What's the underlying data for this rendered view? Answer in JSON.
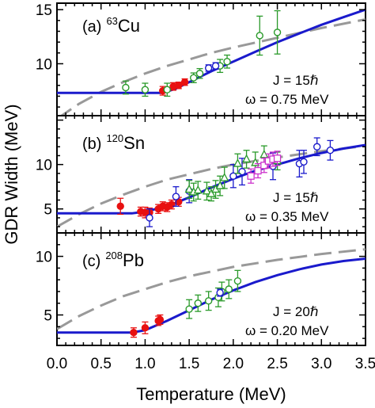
{
  "chart_data": {
    "type": "scatter",
    "xlabel": "Temperature (MeV)",
    "ylabel": "GDR Width (MeV)",
    "xlim": [
      0,
      3.5
    ],
    "x_ticks": [
      "0.0",
      "0.5",
      "1.0",
      "1.5",
      "2.0",
      "2.5",
      "3.0",
      "3.5"
    ],
    "grid": false,
    "panels": [
      {
        "label": "(a)",
        "mass": "63",
        "element": "Cu",
        "annotation_j": "J = 15ℏ",
        "annotation_w": "ω = 0.75 MeV",
        "ylim": [
          5.2,
          15.6
        ],
        "y_ticks": [
          5,
          10,
          15
        ],
        "y_tick_labels": [
          "",
          "10",
          "15"
        ],
        "solid_curve": {
          "color": "#1a1acc",
          "x": [
            0.0,
            1.2,
            1.35,
            1.5,
            1.75,
            2.0,
            2.25,
            2.5,
            2.75,
            3.0,
            3.25,
            3.5
          ],
          "y": [
            7.3,
            7.3,
            7.7,
            8.3,
            9.3,
            10.2,
            11.1,
            12.0,
            12.8,
            13.6,
            14.3,
            15.0
          ]
        },
        "dashed_curve": {
          "color": "#999999",
          "x": [
            0.0,
            0.25,
            0.5,
            0.75,
            1.0,
            1.25,
            1.5,
            1.75,
            2.0,
            2.5,
            3.0,
            3.5
          ],
          "y": [
            4.9,
            6.3,
            7.4,
            8.3,
            9.1,
            9.8,
            10.4,
            11.0,
            11.5,
            12.4,
            13.3,
            14.1
          ]
        },
        "series": [
          {
            "marker": "circle",
            "filled": true,
            "color": "#e81010",
            "points": [
              [
                1.2,
                7.5,
                0.4
              ],
              [
                1.32,
                7.9,
                0.35
              ],
              [
                1.38,
                8.0,
                0.3
              ],
              [
                1.45,
                8.3,
                0.3
              ]
            ]
          },
          {
            "marker": "circle",
            "filled": false,
            "color": "#2a9a2a",
            "points": [
              [
                0.78,
                7.8,
                0.6
              ],
              [
                1.0,
                7.6,
                0.6
              ],
              [
                1.25,
                7.6,
                0.6
              ],
              [
                1.55,
                8.7,
                0.45
              ],
              [
                1.62,
                9.1,
                0.45
              ],
              [
                1.85,
                9.8,
                0.6
              ],
              [
                1.93,
                10.2,
                0.6
              ],
              [
                2.3,
                12.6,
                1.8
              ],
              [
                2.5,
                12.9,
                2.0
              ]
            ]
          },
          {
            "marker": "circle",
            "filled": false,
            "color": "#1a1acc",
            "points": [
              [
                1.72,
                9.6,
                0.3
              ],
              [
                1.8,
                9.8,
                0.3
              ]
            ]
          }
        ]
      },
      {
        "label": "(b)",
        "mass": "120",
        "element": "Sn",
        "annotation_j": "J = 15ℏ",
        "annotation_w": "ω = 0.35 MeV",
        "ylim": [
          2.3,
          15.5
        ],
        "y_ticks": [
          5,
          10,
          15
        ],
        "y_tick_labels": [
          "5",
          "10",
          ""
        ],
        "solid_curve": {
          "color": "#1a1acc",
          "x": [
            0.0,
            0.85,
            1.0,
            1.25,
            1.5,
            1.75,
            2.0,
            2.25,
            2.5,
            2.75,
            3.0,
            3.25,
            3.5
          ],
          "y": [
            4.5,
            4.5,
            4.7,
            5.3,
            6.3,
            7.4,
            8.4,
            9.3,
            10.0,
            10.7,
            11.3,
            11.8,
            12.2
          ]
        },
        "dashed_curve": {
          "color": "#999999",
          "x": [
            0.0,
            0.25,
            0.5,
            0.75,
            1.0,
            1.25,
            1.5,
            1.75,
            2.0,
            2.5,
            3.0,
            3.5
          ],
          "y": [
            3.0,
            4.4,
            5.6,
            6.6,
            7.5,
            8.3,
            8.9,
            9.5,
            10.0,
            10.8,
            11.5,
            12.1
          ]
        },
        "series": [
          {
            "marker": "circle",
            "filled": true,
            "color": "#e81010",
            "points": [
              [
                0.72,
                5.3,
                0.9
              ],
              [
                0.95,
                4.7,
                0.5
              ],
              [
                1.0,
                4.6,
                0.6
              ],
              [
                1.05,
                4.6,
                0.5
              ],
              [
                1.15,
                5.0,
                0.5
              ],
              [
                1.2,
                5.3,
                0.5
              ],
              [
                1.25,
                5.2,
                0.5
              ],
              [
                1.3,
                5.5,
                0.5
              ],
              [
                1.38,
                5.8,
                0.5
              ]
            ]
          },
          {
            "marker": "circle",
            "filled": false,
            "color": "#1a1acc",
            "points": [
              [
                1.05,
                4.0,
                1.0
              ],
              [
                1.35,
                6.4,
                1.1
              ],
              [
                1.5,
                7.0,
                1.3
              ],
              [
                2.0,
                8.7,
                1.3
              ],
              [
                2.1,
                9.2,
                1.5
              ],
              [
                2.45,
                9.8,
                1.5
              ],
              [
                2.75,
                10.1,
                1.5
              ],
              [
                2.8,
                10.3,
                1.3
              ],
              [
                2.95,
                12.0,
                1.0
              ],
              [
                3.1,
                11.6,
                1.1
              ]
            ]
          },
          {
            "marker": "triangle",
            "filled": false,
            "color": "#2a9a2a",
            "points": [
              [
                1.5,
                7.2,
                1.0
              ],
              [
                1.55,
                6.9,
                1.0
              ],
              [
                1.6,
                7.1,
                1.0
              ],
              [
                1.7,
                7.0,
                1.0
              ],
              [
                1.75,
                6.7,
                0.8
              ],
              [
                1.8,
                7.2,
                1.0
              ],
              [
                1.85,
                7.6,
                1.1
              ],
              [
                1.9,
                8.5,
                1.2
              ],
              [
                2.05,
                10.1,
                1.1
              ],
              [
                2.15,
                10.6,
                1.0
              ],
              [
                2.25,
                10.2,
                1.2
              ],
              [
                2.35,
                11.1,
                1.0
              ],
              [
                2.5,
                10.4,
                1.0
              ]
            ]
          },
          {
            "marker": "square",
            "filled": false,
            "color": "#cc33cc",
            "points": [
              [
                2.2,
                8.7,
                0.8
              ],
              [
                2.28,
                9.3,
                0.8
              ],
              [
                2.35,
                9.9,
                0.8
              ],
              [
                2.4,
                10.4,
                0.8
              ],
              [
                2.45,
                10.6,
                0.8
              ],
              [
                2.5,
                10.7,
                0.8
              ]
            ]
          }
        ]
      },
      {
        "label": "(c)",
        "mass": "208",
        "element": "Pb",
        "annotation_j": "J = 20ℏ",
        "annotation_w": "ω = 0.20 MeV",
        "ylim": [
          2.4,
          12.0
        ],
        "y_ticks": [
          5,
          10
        ],
        "y_tick_labels": [
          "5",
          "10"
        ],
        "solid_curve": {
          "color": "#1a1acc",
          "x": [
            0.0,
            0.85,
            1.0,
            1.25,
            1.5,
            1.75,
            2.0,
            2.25,
            2.5,
            2.75,
            3.0,
            3.25,
            3.5
          ],
          "y": [
            3.5,
            3.5,
            3.7,
            4.5,
            5.4,
            6.3,
            7.1,
            7.8,
            8.4,
            8.9,
            9.3,
            9.6,
            9.8
          ]
        },
        "dashed_curve": {
          "color": "#999999",
          "x": [
            0.0,
            0.25,
            0.5,
            0.75,
            1.0,
            1.25,
            1.5,
            1.75,
            2.0,
            2.5,
            3.0,
            3.5
          ],
          "y": [
            3.8,
            4.9,
            5.8,
            6.6,
            7.2,
            7.8,
            8.3,
            8.7,
            9.1,
            9.7,
            10.2,
            10.6
          ]
        },
        "series": [
          {
            "marker": "circle",
            "filled": true,
            "color": "#e81010",
            "points": [
              [
                0.87,
                3.5,
                0.4
              ],
              [
                1.0,
                3.9,
                0.5
              ],
              [
                1.15,
                4.5,
                0.4
              ],
              [
                1.17,
                4.6,
                0.4
              ]
            ]
          },
          {
            "marker": "circle",
            "filled": false,
            "color": "#2a9a2a",
            "points": [
              [
                1.5,
                5.5,
                0.8
              ],
              [
                1.6,
                6.0,
                0.7
              ],
              [
                1.72,
                6.2,
                0.8
              ],
              [
                1.83,
                6.5,
                0.8
              ],
              [
                1.87,
                7.0,
                0.8
              ],
              [
                1.95,
                7.2,
                0.8
              ],
              [
                2.05,
                7.9,
                0.9
              ]
            ]
          },
          {
            "marker": "circle",
            "filled": false,
            "color": "#1a1acc",
            "points": [
              [
                1.85,
                6.9,
                0.3
              ]
            ]
          }
        ]
      }
    ]
  }
}
